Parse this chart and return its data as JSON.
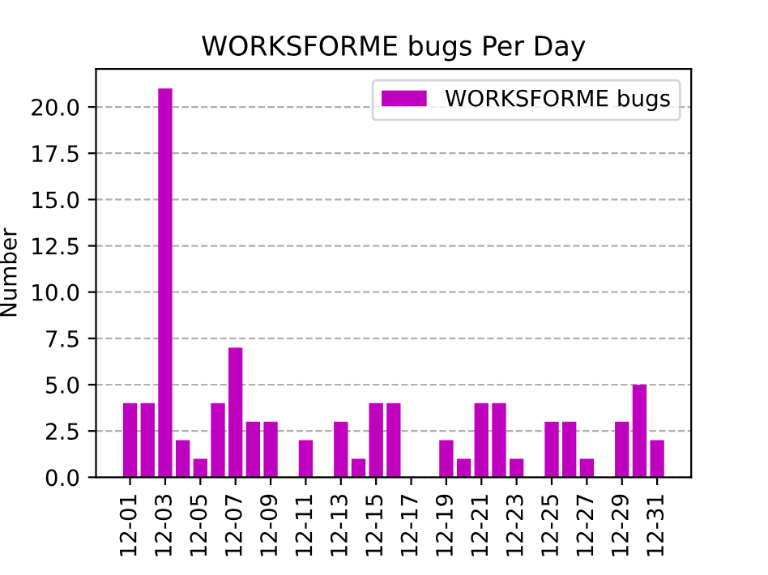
{
  "chart_data": {
    "type": "bar",
    "title": "WORKSFORME bugs Per Day",
    "ylabel": "Number",
    "categories": [
      "12-01",
      null,
      "12-03",
      null,
      "12-05",
      null,
      "12-07",
      null,
      "12-09",
      null,
      "12-11",
      null,
      "12-13",
      null,
      "12-15",
      null,
      "12-17",
      null,
      "12-19",
      null,
      "12-21",
      null,
      "12-23",
      null,
      "12-25",
      null,
      "12-27",
      null,
      "12-29",
      null,
      "12-31"
    ],
    "series": [
      {
        "name": "WORKSFORME bugs",
        "color": "#bf00bf",
        "values": [
          4,
          4,
          21,
          2,
          1,
          4,
          7,
          3,
          3,
          0,
          2,
          0,
          3,
          1,
          4,
          4,
          0,
          0,
          2,
          1,
          4,
          4,
          1,
          0,
          3,
          3,
          1,
          0,
          3,
          5,
          2
        ]
      }
    ],
    "ylim": [
      0,
      22.05
    ],
    "yticks": [
      {
        "value": 0,
        "label": "0.0"
      },
      {
        "value": 2.5,
        "label": "2.5"
      },
      {
        "value": 5,
        "label": "5.0"
      },
      {
        "value": 7.5,
        "label": "7.5"
      },
      {
        "value": 10,
        "label": "10.0"
      },
      {
        "value": 12.5,
        "label": "12.5"
      },
      {
        "value": 15,
        "label": "15.0"
      },
      {
        "value": 17.5,
        "label": "17.5"
      },
      {
        "value": 20,
        "label": "20.0"
      }
    ],
    "grid": "y",
    "legend": "top right"
  }
}
